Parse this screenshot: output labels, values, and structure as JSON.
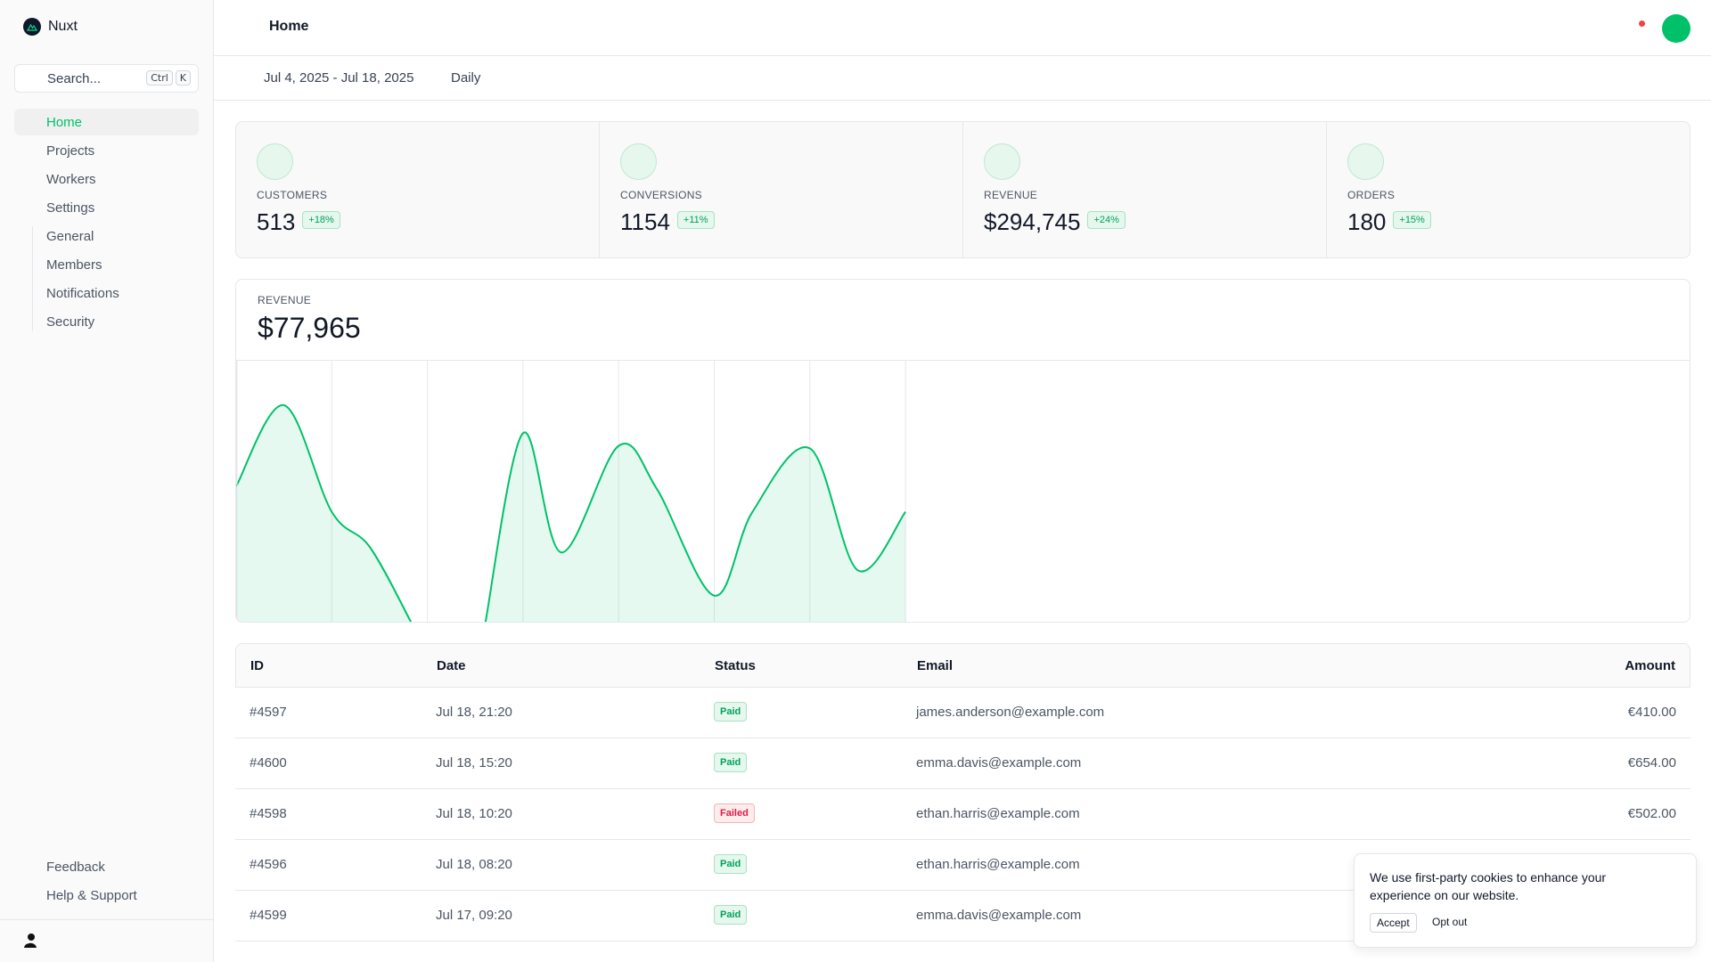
{
  "app": {
    "name": "Nuxt"
  },
  "search": {
    "placeholder": "Search...",
    "kbd": [
      "Ctrl",
      "K"
    ]
  },
  "sidebar": {
    "items": [
      {
        "label": "Home",
        "active": true
      },
      {
        "label": "Projects"
      },
      {
        "label": "Workers"
      },
      {
        "label": "Settings"
      }
    ],
    "settings_sub": [
      "General",
      "Members",
      "Notifications",
      "Security"
    ],
    "bottom": [
      "Feedback",
      "Help & Support"
    ]
  },
  "header": {
    "title": "Home"
  },
  "toolbar": {
    "date_range": "Jul 4, 2025 - Jul 18, 2025",
    "period": "Daily"
  },
  "stats": [
    {
      "label": "CUSTOMERS",
      "value": "513",
      "change": "+18%"
    },
    {
      "label": "CONVERSIONS",
      "value": "1154",
      "change": "+11%"
    },
    {
      "label": "REVENUE",
      "value": "$294,745",
      "change": "+24%"
    },
    {
      "label": "ORDERS",
      "value": "180",
      "change": "+15%"
    }
  ],
  "revenue": {
    "label": "REVENUE",
    "value": "$77,965"
  },
  "chart_data": {
    "type": "area",
    "title": "",
    "xlabel": "",
    "ylabel": "",
    "x": [
      0,
      1,
      2,
      3,
      4,
      5,
      6,
      7
    ],
    "values": [
      54,
      86,
      42,
      61,
      70,
      11,
      69,
      49
    ],
    "series_color": "#00c16a",
    "gaps": [
      [
        1.8,
        2.6
      ]
    ],
    "grid": true
  },
  "table": {
    "columns": [
      "ID",
      "Date",
      "Status",
      "Email",
      "Amount"
    ],
    "rows": [
      {
        "id": "#4597",
        "date": "Jul 18, 21:20",
        "status": "Paid",
        "email": "james.anderson@example.com",
        "amount": "€410.00"
      },
      {
        "id": "#4600",
        "date": "Jul 18, 15:20",
        "status": "Paid",
        "email": "emma.davis@example.com",
        "amount": "€654.00"
      },
      {
        "id": "#4598",
        "date": "Jul 18, 10:20",
        "status": "Failed",
        "email": "ethan.harris@example.com",
        "amount": "€502.00"
      },
      {
        "id": "#4596",
        "date": "Jul 18, 08:20",
        "status": "Paid",
        "email": "ethan.harris@example.com",
        "amount": ""
      },
      {
        "id": "#4599",
        "date": "Jul 17, 09:20",
        "status": "Paid",
        "email": "emma.davis@example.com",
        "amount": ""
      }
    ]
  },
  "cookie": {
    "text": "We use first-party cookies to enhance your experience on our website.",
    "accept": "Accept",
    "opt_out": "Opt out"
  },
  "colors": {
    "accent": "#00c16a",
    "danger": "#ef4444"
  }
}
